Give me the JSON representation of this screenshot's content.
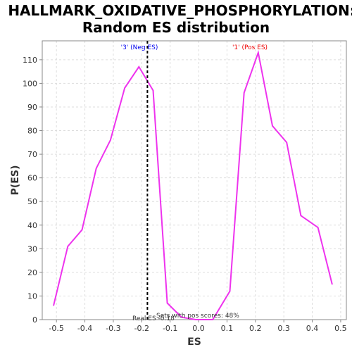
{
  "chart_data": {
    "type": "line",
    "title_line1": "HALLMARK_OXIDATIVE_PHOSPHORYLATION:",
    "title_line2": "Random ES distribution",
    "xlabel": "ES",
    "ylabel": "P(ES)",
    "xlim": [
      -0.55,
      0.52
    ],
    "ylim": [
      0,
      118
    ],
    "xticks": [
      -0.5,
      -0.4,
      -0.3,
      -0.2,
      -0.1,
      0.0,
      0.1,
      0.2,
      0.3,
      0.4,
      0.5
    ],
    "xtick_labels": [
      "-0.5",
      "-0.4",
      "-0.3",
      "-0.2",
      "-0.1",
      "0.0",
      "0.1",
      "0.2",
      "0.3",
      "0.4",
      "0.5"
    ],
    "yticks": [
      0,
      10,
      20,
      30,
      40,
      50,
      60,
      70,
      80,
      90,
      100,
      110
    ],
    "ytick_labels": [
      "0",
      "10",
      "20",
      "30",
      "40",
      "50",
      "60",
      "70",
      "80",
      "90",
      "100",
      "110"
    ],
    "grid": true,
    "series": [
      {
        "color": "#ee33ee",
        "x": [
          -0.51,
          -0.46,
          -0.41,
          -0.36,
          -0.31,
          -0.26,
          -0.21,
          -0.16,
          -0.11,
          -0.06,
          -0.01,
          0.05,
          0.11,
          0.16,
          0.21,
          0.26,
          0.31,
          0.36,
          0.42,
          0.47
        ],
        "y": [
          6,
          31,
          38,
          64,
          76,
          98,
          107,
          97,
          7,
          1,
          0,
          0,
          12,
          96,
          113,
          82,
          75,
          44,
          39,
          15
        ]
      }
    ],
    "real_es": -0.18,
    "real_es_label": "Real ES -0.18",
    "neg_label": "'3' (Neg ES)",
    "pos_label": "'1' (Pos ES)",
    "pos_scores_label": "Sets with pos scores: 48%",
    "colors": {
      "neg": "#0000ee",
      "pos": "#ee0000",
      "line": "#ee33ee",
      "grid": "#dddddd",
      "realline": "#000000"
    }
  }
}
